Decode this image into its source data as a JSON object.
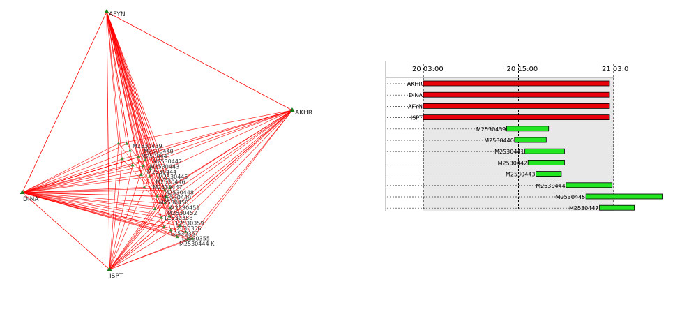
{
  "network": {
    "stations": [
      {
        "id": "AFYN",
        "label": "AFYN"
      },
      {
        "id": "AKHR",
        "label": "AKHR"
      },
      {
        "id": "DINA",
        "label": "DINA"
      },
      {
        "id": "ISPT",
        "label": "ISPT"
      }
    ],
    "cluster_labels": [
      "M2530439",
      "M2530440",
      "M2530441",
      "M2530442",
      "M2530443",
      "M2530444",
      "M2530445",
      "M2530446",
      "M2530447",
      "M2530448",
      "M2530449",
      "M2530450",
      "M2530451",
      "M2530452",
      "L2530358",
      "L2530359",
      "L2530356",
      "L2530357",
      "L2530355",
      "M2530444 K"
    ],
    "colors": {
      "baseline": "#ff0000",
      "station": "#1a7a1a",
      "point": "#3c8c3c"
    }
  },
  "timeline": {
    "axis_labels": [
      "20 03:00",
      "20 15:00",
      "21 03:0"
    ],
    "rows": [
      {
        "label": "AKHR",
        "type": "station"
      },
      {
        "label": "DINA",
        "type": "station"
      },
      {
        "label": "AFYN",
        "type": "station"
      },
      {
        "label": "ISPT",
        "type": "station"
      },
      {
        "label": "M2530439",
        "type": "session"
      },
      {
        "label": "M2530440",
        "type": "session"
      },
      {
        "label": "M2530441",
        "type": "session"
      },
      {
        "label": "M2530442",
        "type": "session"
      },
      {
        "label": "M2530443",
        "type": "session"
      },
      {
        "label": "M2530444",
        "type": "session"
      },
      {
        "label": "M2530445",
        "type": "session"
      },
      {
        "label": "M2530447",
        "type": "session"
      }
    ],
    "colors": {
      "station_bar": "#e8000b",
      "session_bar": "#22e622",
      "background": "#e8e8e8"
    }
  }
}
